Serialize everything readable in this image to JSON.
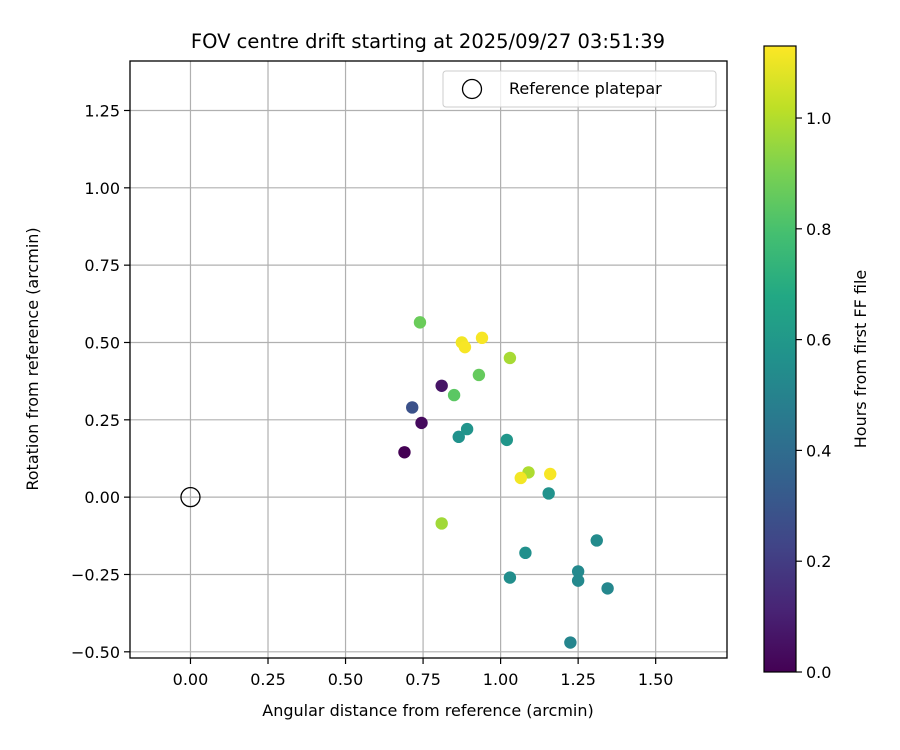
{
  "chart_data": {
    "type": "scatter",
    "title": "FOV centre drift starting at 2025/09/27 03:51:39",
    "xlabel": "Angular distance from reference (arcmin)",
    "ylabel": "Rotation from reference (arcmin)",
    "xlim": [
      -0.195,
      1.73
    ],
    "ylim": [
      -0.52,
      1.41
    ],
    "x_ticks": [
      0.0,
      0.25,
      0.5,
      0.75,
      1.0,
      1.25,
      1.5
    ],
    "x_tick_labels": [
      "0.00",
      "0.25",
      "0.50",
      "0.75",
      "1.00",
      "1.25",
      "1.50"
    ],
    "y_ticks": [
      -0.5,
      -0.25,
      0.0,
      0.25,
      0.5,
      0.75,
      1.0,
      1.25
    ],
    "y_tick_labels": [
      "−0.50",
      "−0.25",
      "0.00",
      "0.25",
      "0.50",
      "0.75",
      "1.00",
      "1.25"
    ],
    "grid": true,
    "legend": {
      "position": "top-right",
      "entries": [
        "Reference platepar"
      ]
    },
    "reference": {
      "x": 0.0,
      "y": 0.0,
      "label": "Reference platepar"
    },
    "colorbar": {
      "label": "Hours from first FF file",
      "colormap": "viridis",
      "min": 0.0,
      "max": 1.13,
      "ticks": [
        0.0,
        0.2,
        0.4,
        0.6,
        0.8,
        1.0
      ],
      "tick_labels": [
        "0.0",
        "0.2",
        "0.4",
        "0.6",
        "0.8",
        "1.0"
      ]
    },
    "points": [
      {
        "x": 0.69,
        "y": 0.145,
        "hours": 0.0
      },
      {
        "x": 0.745,
        "y": 0.24,
        "hours": 0.03
      },
      {
        "x": 0.81,
        "y": 0.36,
        "hours": 0.06
      },
      {
        "x": 0.715,
        "y": 0.29,
        "hours": 0.28
      },
      {
        "x": 0.865,
        "y": 0.195,
        "hours": 0.57
      },
      {
        "x": 0.892,
        "y": 0.22,
        "hours": 0.58
      },
      {
        "x": 1.02,
        "y": 0.185,
        "hours": 0.59
      },
      {
        "x": 1.155,
        "y": 0.012,
        "hours": 0.57
      },
      {
        "x": 1.08,
        "y": -0.18,
        "hours": 0.56
      },
      {
        "x": 1.03,
        "y": -0.26,
        "hours": 0.55
      },
      {
        "x": 1.31,
        "y": -0.14,
        "hours": 0.54
      },
      {
        "x": 1.25,
        "y": -0.24,
        "hours": 0.53
      },
      {
        "x": 1.25,
        "y": -0.27,
        "hours": 0.53
      },
      {
        "x": 1.345,
        "y": -0.295,
        "hours": 0.52
      },
      {
        "x": 1.225,
        "y": -0.47,
        "hours": 0.51
      },
      {
        "x": 0.85,
        "y": 0.33,
        "hours": 0.84
      },
      {
        "x": 0.93,
        "y": 0.395,
        "hours": 0.86
      },
      {
        "x": 0.74,
        "y": 0.565,
        "hours": 0.87
      },
      {
        "x": 1.03,
        "y": 0.45,
        "hours": 0.98
      },
      {
        "x": 1.09,
        "y": 0.08,
        "hours": 0.99
      },
      {
        "x": 0.81,
        "y": -0.085,
        "hours": 0.97
      },
      {
        "x": 0.875,
        "y": 0.5,
        "hours": 1.11
      },
      {
        "x": 0.885,
        "y": 0.485,
        "hours": 1.12
      },
      {
        "x": 0.94,
        "y": 0.515,
        "hours": 1.12
      },
      {
        "x": 1.16,
        "y": 0.075,
        "hours": 1.12
      },
      {
        "x": 1.065,
        "y": 0.062,
        "hours": 1.11
      }
    ]
  }
}
